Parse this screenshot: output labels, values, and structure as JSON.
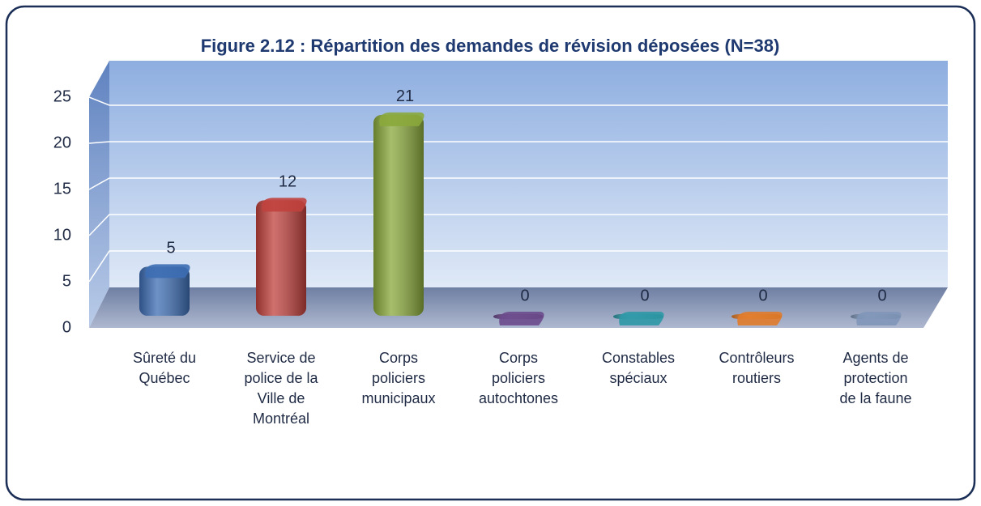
{
  "chart_data": {
    "type": "bar",
    "title": "Figure 2.12 : Répartition des demandes de révision déposées (N=38)",
    "categories": [
      "Sûreté du Québec",
      "Service de police de la Ville de Montréal",
      "Corps policiers municipaux",
      "Corps policiers autochtones",
      "Constables spéciaux",
      "Contrôleurs routiers",
      "Agents de protection de la faune"
    ],
    "values": [
      5,
      12,
      21,
      0,
      0,
      0,
      0
    ],
    "colors": [
      "#3d6db3",
      "#c0413d",
      "#89a83b",
      "#6b4a8c",
      "#2d98a6",
      "#e07b2a",
      "#7f96b8"
    ],
    "ylim": [
      0,
      25
    ],
    "yticks": [
      0,
      5,
      10,
      15,
      20,
      25
    ],
    "grid": true
  }
}
